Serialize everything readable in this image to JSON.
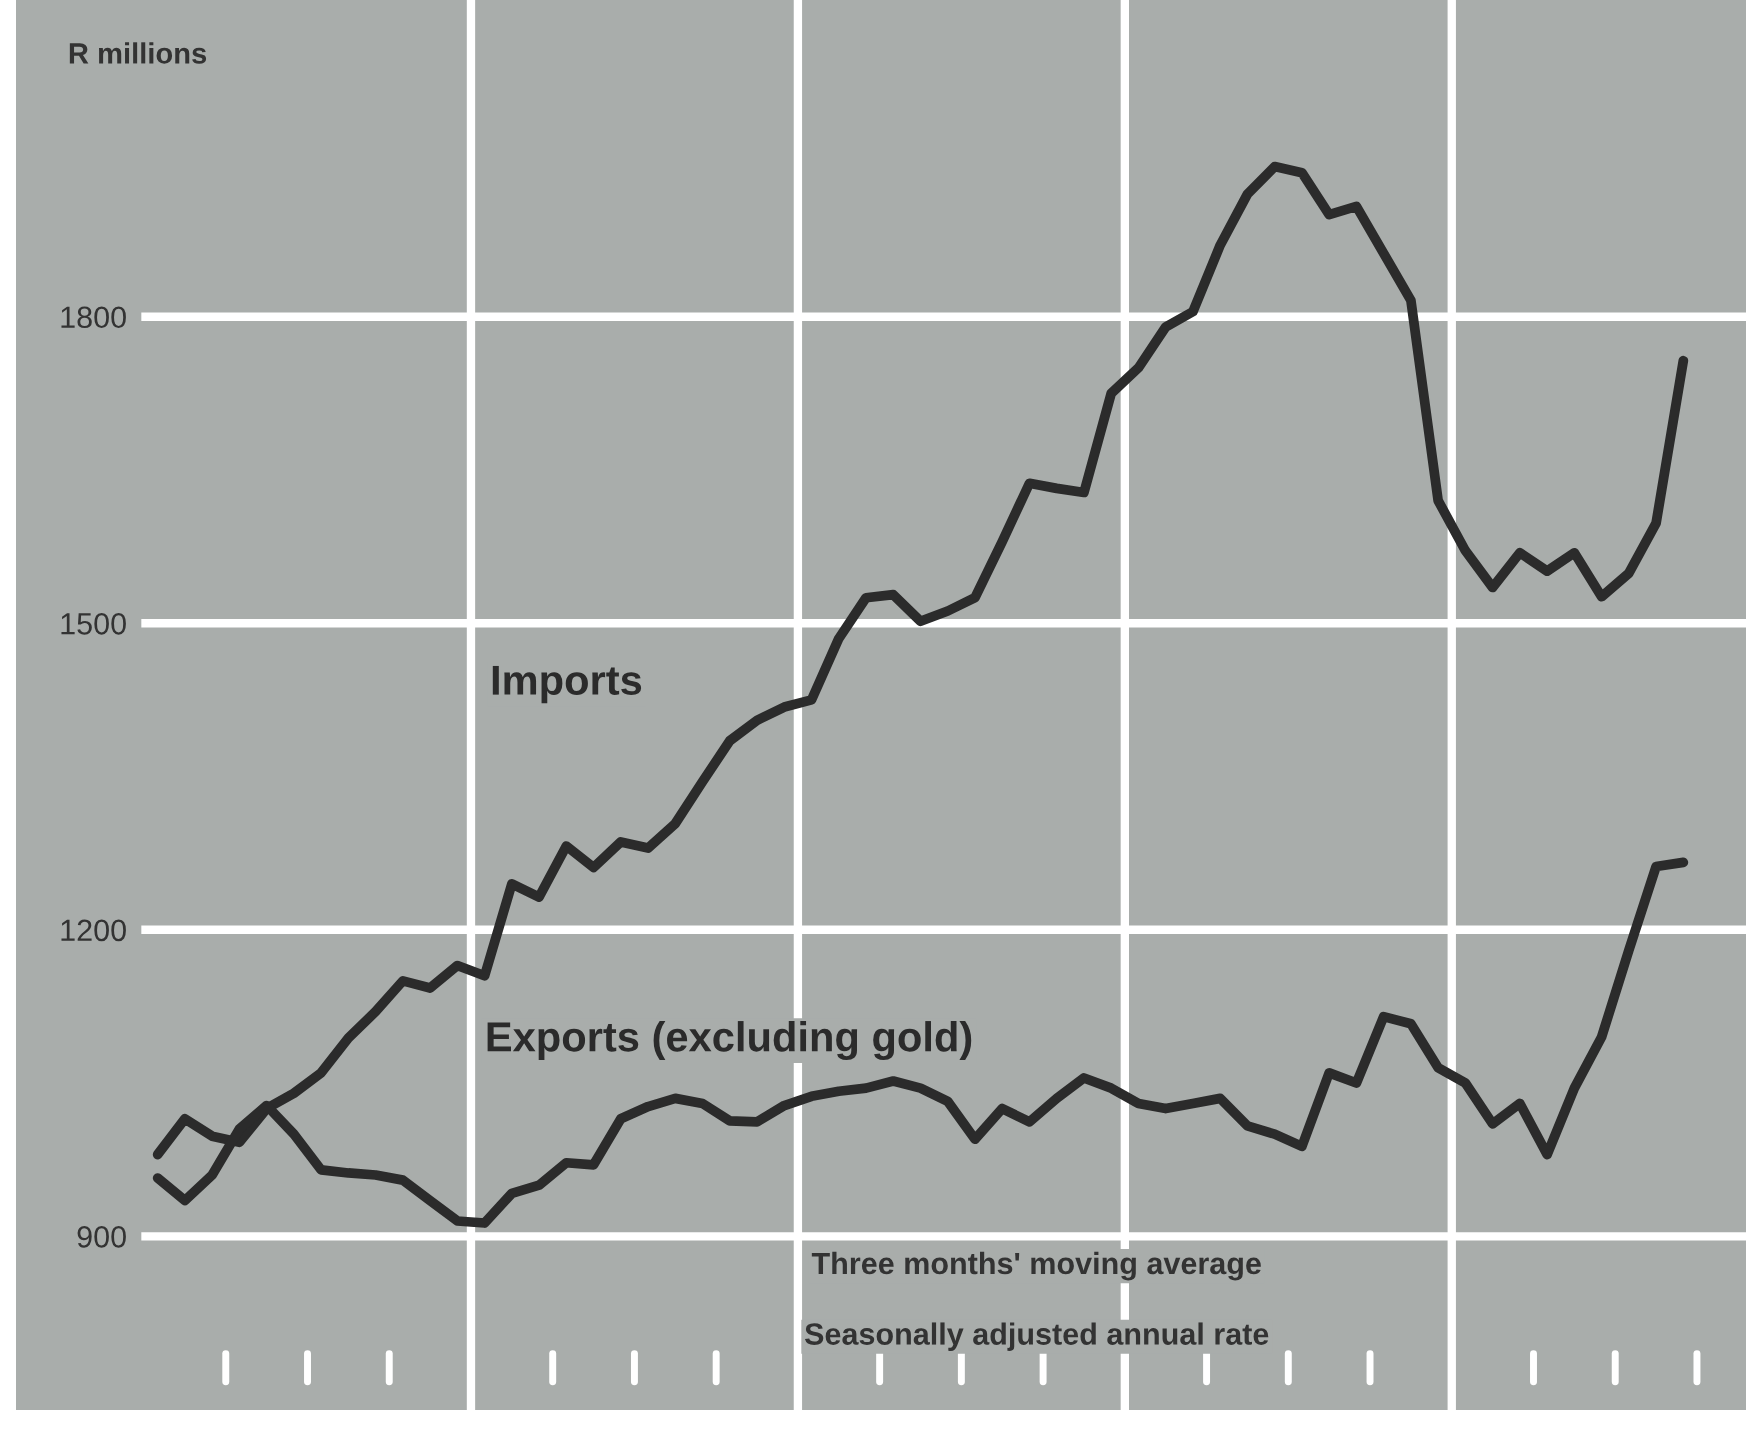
{
  "chart_data": {
    "type": "line",
    "ylabel": "R millions",
    "categories": [
      null,
      null,
      null,
      null,
      null,
      null,
      null,
      null,
      null,
      null,
      null,
      null,
      null,
      null,
      null,
      null,
      null,
      null,
      null,
      null,
      null,
      null,
      null,
      null,
      null,
      null,
      null,
      null,
      null,
      null,
      null,
      null,
      null,
      null,
      null,
      null,
      null,
      null,
      null,
      null,
      null,
      null,
      null,
      null,
      null,
      null,
      null,
      null,
      null,
      null,
      null,
      null,
      null,
      null,
      null,
      null,
      null
    ],
    "series": [
      {
        "name": "Imports",
        "color": "#2b2b2b",
        "values": [
          980,
          1015,
          998,
          992,
          1025,
          1040,
          1060,
          1094,
          1120,
          1150,
          1143,
          1165,
          1155,
          1245,
          1232,
          1282,
          1261,
          1286,
          1280,
          1304,
          1345,
          1385,
          1405,
          1418,
          1425,
          1485,
          1525,
          1528,
          1502,
          1512,
          1525,
          1580,
          1637,
          1632,
          1628,
          1725,
          1750,
          1790,
          1805,
          1870,
          1920,
          1947,
          1941,
          1900,
          1908,
          1862,
          1816,
          1620,
          1571,
          1535,
          1569,
          1551,
          1569,
          1526,
          1549,
          1598,
          1757
        ]
      },
      {
        "name": "Exports (excluding gold)",
        "color": "#2b2b2b",
        "values": [
          957,
          935,
          960,
          1005,
          1028,
          1000,
          965,
          962,
          960,
          955,
          935,
          915,
          913,
          942,
          950,
          972,
          970,
          1015,
          1027,
          1035,
          1030,
          1013,
          1012,
          1028,
          1037,
          1042,
          1045,
          1052,
          1045,
          1032,
          995,
          1025,
          1012,
          1035,
          1055,
          1045,
          1030,
          1025,
          1030,
          1035,
          1008,
          1000,
          988,
          1060,
          1050,
          1115,
          1108,
          1065,
          1050,
          1010,
          1030,
          980,
          1045,
          1095,
          1180,
          1262,
          1266
        ]
      }
    ],
    "ylim": [
      730,
      2110
    ],
    "yticks": [
      900,
      1200,
      1500,
      1800
    ],
    "annotations": [
      "Three months' moving average",
      "Seasonally adjusted annual rate"
    ],
    "grid": "y",
    "legend": false,
    "marker": "none",
    "line_style": "solid"
  }
}
